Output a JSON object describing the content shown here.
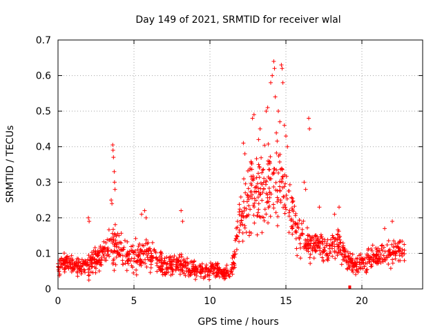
{
  "chart_data": {
    "type": "scatter",
    "title": "Day 149 of 2021, SRMTID for receiver wlal",
    "xlabel": "GPS time / hours",
    "ylabel": "SRMTID / TECUs",
    "xlim": [
      0,
      24
    ],
    "ylim": [
      0,
      0.7
    ],
    "x_ticks": [
      0,
      5,
      10,
      15,
      20
    ],
    "x_tick_labels": [
      "0",
      "5",
      "10",
      "15",
      "20"
    ],
    "y_ticks": [
      0,
      0.1,
      0.2,
      0.3,
      0.4,
      0.5,
      0.6,
      0.7
    ],
    "y_tick_labels": [
      "0",
      "0.1",
      "0.2",
      "0.3",
      "0.4",
      "0.5",
      "0.6",
      "0.7"
    ],
    "grid": true,
    "marker": "+",
    "color": "#ff0000",
    "envelope": {
      "description": "approximate running level and spread of the scattered points",
      "x": [
        0,
        0.5,
        1,
        1.5,
        2,
        2.5,
        3,
        3.5,
        4,
        4.5,
        5,
        5.5,
        6,
        6.5,
        7,
        7.5,
        8,
        8.5,
        9,
        9.5,
        10,
        10.5,
        11,
        11.5,
        12,
        12.5,
        13,
        13.5,
        14,
        14.5,
        15,
        15.5,
        16,
        16.5,
        17,
        17.5,
        18,
        18.5,
        19,
        19.5,
        20,
        20.5,
        21,
        21.5,
        22,
        22.5,
        22.8
      ],
      "center": [
        0.06,
        0.07,
        0.065,
        0.06,
        0.07,
        0.08,
        0.1,
        0.12,
        0.11,
        0.09,
        0.09,
        0.1,
        0.1,
        0.08,
        0.07,
        0.07,
        0.07,
        0.06,
        0.05,
        0.05,
        0.05,
        0.05,
        0.04,
        0.06,
        0.2,
        0.25,
        0.28,
        0.27,
        0.3,
        0.3,
        0.28,
        0.2,
        0.15,
        0.13,
        0.12,
        0.11,
        0.12,
        0.12,
        0.08,
        0.07,
        0.08,
        0.08,
        0.09,
        0.1,
        0.1,
        0.11,
        0.11
      ],
      "spread": [
        0.03,
        0.03,
        0.025,
        0.025,
        0.04,
        0.04,
        0.05,
        0.07,
        0.05,
        0.04,
        0.05,
        0.05,
        0.05,
        0.04,
        0.03,
        0.03,
        0.04,
        0.03,
        0.025,
        0.025,
        0.025,
        0.025,
        0.02,
        0.03,
        0.09,
        0.1,
        0.11,
        0.11,
        0.13,
        0.13,
        0.11,
        0.08,
        0.07,
        0.05,
        0.05,
        0.04,
        0.05,
        0.05,
        0.03,
        0.03,
        0.035,
        0.035,
        0.035,
        0.04,
        0.04,
        0.04,
        0.04
      ]
    },
    "spikes": [
      {
        "x": 3.6,
        "y": 0.405
      },
      {
        "x": 3.62,
        "y": 0.39
      },
      {
        "x": 3.65,
        "y": 0.37
      },
      {
        "x": 3.7,
        "y": 0.33
      },
      {
        "x": 3.72,
        "y": 0.3
      },
      {
        "x": 3.75,
        "y": 0.28
      },
      {
        "x": 3.5,
        "y": 0.25
      },
      {
        "x": 3.55,
        "y": 0.24
      },
      {
        "x": 2.0,
        "y": 0.2
      },
      {
        "x": 2.05,
        "y": 0.19
      },
      {
        "x": 5.5,
        "y": 0.21
      },
      {
        "x": 5.7,
        "y": 0.22
      },
      {
        "x": 5.8,
        "y": 0.2
      },
      {
        "x": 8.1,
        "y": 0.22
      },
      {
        "x": 8.2,
        "y": 0.19
      },
      {
        "x": 12.2,
        "y": 0.41
      },
      {
        "x": 12.3,
        "y": 0.38
      },
      {
        "x": 12.8,
        "y": 0.48
      },
      {
        "x": 12.9,
        "y": 0.49
      },
      {
        "x": 13.2,
        "y": 0.42
      },
      {
        "x": 13.3,
        "y": 0.45
      },
      {
        "x": 13.7,
        "y": 0.5
      },
      {
        "x": 13.8,
        "y": 0.51
      },
      {
        "x": 14.0,
        "y": 0.58
      },
      {
        "x": 14.1,
        "y": 0.6
      },
      {
        "x": 14.2,
        "y": 0.64
      },
      {
        "x": 14.25,
        "y": 0.62
      },
      {
        "x": 14.3,
        "y": 0.54
      },
      {
        "x": 14.5,
        "y": 0.5
      },
      {
        "x": 14.7,
        "y": 0.63
      },
      {
        "x": 14.75,
        "y": 0.62
      },
      {
        "x": 14.8,
        "y": 0.58
      },
      {
        "x": 14.6,
        "y": 0.47
      },
      {
        "x": 14.9,
        "y": 0.46
      },
      {
        "x": 15.0,
        "y": 0.43
      },
      {
        "x": 15.1,
        "y": 0.4
      },
      {
        "x": 16.5,
        "y": 0.48
      },
      {
        "x": 16.55,
        "y": 0.45
      },
      {
        "x": 16.2,
        "y": 0.3
      },
      {
        "x": 16.3,
        "y": 0.28
      },
      {
        "x": 17.2,
        "y": 0.23
      },
      {
        "x": 18.2,
        "y": 0.21
      },
      {
        "x": 18.5,
        "y": 0.23
      },
      {
        "x": 22.0,
        "y": 0.19
      },
      {
        "x": 21.5,
        "y": 0.17
      }
    ],
    "outlier_marker": {
      "x": 19.2,
      "y": 0.0
    }
  }
}
